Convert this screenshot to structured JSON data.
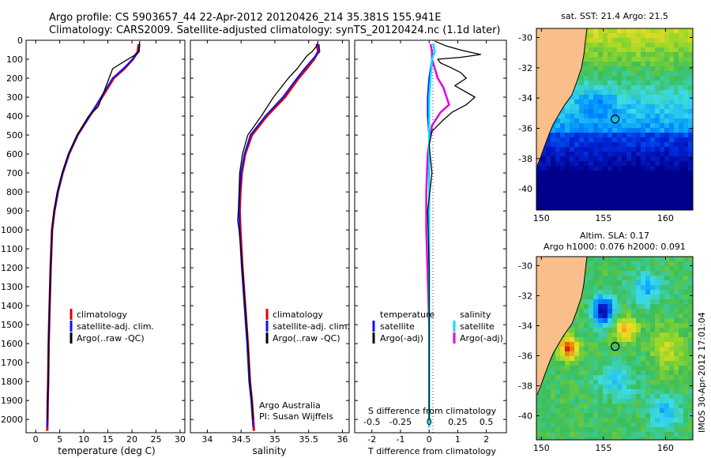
{
  "title_line1": "Argo profile: CS 5903657_44 22-Apr-2012 20120426_214 35.381S 155.941E",
  "title_line2": "Climatology: CARS2009. Satellite-adjusted climatology: synTS_20120424.nc (1.1d later)",
  "colors": {
    "climatology": "#e00000",
    "satellite": "#1010ff",
    "argo": "#000000",
    "sal_sat": "#00e0ff",
    "sal_argo": "#e000e0",
    "land": "#f9be8a"
  },
  "chart_data": [
    {
      "id": "temperature",
      "type": "line",
      "xlabel": "temperature (deg C)",
      "ylabel": "depth",
      "xlim": [
        -2,
        31
      ],
      "ylim": [
        2070,
        0
      ],
      "xticks": [
        "0",
        "5",
        "10",
        "15",
        "20",
        "25",
        "30"
      ],
      "xtick_values": [
        0,
        5,
        10,
        15,
        20,
        25,
        30
      ],
      "yticks": [
        "0",
        "100",
        "200",
        "300",
        "400",
        "500",
        "600",
        "700",
        "800",
        "900",
        "1000",
        "1100",
        "1200",
        "1300",
        "1400",
        "1500",
        "1600",
        "1700",
        "1800",
        "1900",
        "2000"
      ],
      "ytick_values": [
        0,
        100,
        200,
        300,
        400,
        500,
        600,
        700,
        800,
        900,
        1000,
        1100,
        1200,
        1300,
        1400,
        1500,
        1600,
        1700,
        1800,
        1900,
        2000
      ],
      "legend": [
        "climatology",
        "satellite-adj. clim.",
        "Argo(..raw -QC)"
      ],
      "series": [
        {
          "name": "climatology",
          "color": "#e00000",
          "width": 3,
          "x": [
            21.4,
            21.2,
            20.2,
            18.4,
            16.2,
            13.8,
            11.2,
            8.7,
            6.9,
            5.6,
            4.6,
            3.9,
            3.4,
            3.1,
            2.9,
            2.7,
            2.6,
            2.5,
            2.45,
            2.4
          ],
          "depth": [
            20,
            60,
            100,
            150,
            200,
            300,
            400,
            500,
            600,
            700,
            800,
            900,
            1000,
            1200,
            1400,
            1600,
            1800,
            1900,
            2000,
            2060
          ]
        },
        {
          "name": "satellite-adj. clim.",
          "color": "#1010ff",
          "width": 2,
          "x": [
            21.6,
            21.4,
            20.2,
            18.2,
            16.0,
            13.6,
            11.2,
            8.7,
            6.9,
            5.6,
            4.6,
            3.9,
            3.4,
            3.1,
            2.9,
            2.7,
            2.6,
            2.5,
            2.45,
            2.4
          ],
          "depth": [
            20,
            60,
            100,
            150,
            200,
            300,
            400,
            500,
            600,
            700,
            800,
            900,
            1000,
            1200,
            1400,
            1600,
            1800,
            1900,
            2000,
            2040
          ]
        },
        {
          "name": "Argo(..raw -QC)",
          "color": "#000000",
          "width": 1.3,
          "x": [
            21.6,
            21.6,
            21.5,
            20.5,
            18.5,
            16.0,
            14.5,
            13.0,
            11.0,
            8.6,
            6.8,
            5.5,
            4.5,
            3.8,
            3.4,
            3.1,
            2.9,
            2.7,
            2.6,
            2.5,
            2.45
          ],
          "depth": [
            5,
            30,
            60,
            80,
            110,
            150,
            250,
            350,
            400,
            500,
            600,
            700,
            800,
            900,
            1000,
            1200,
            1400,
            1600,
            1800,
            1900,
            2000
          ]
        }
      ]
    },
    {
      "id": "salinity",
      "type": "line",
      "xlabel": "salinity",
      "ylabel": "depth",
      "xlim": [
        33.75,
        36.1
      ],
      "ylim": [
        2070,
        0
      ],
      "xticks": [
        "34",
        "34.5",
        "35",
        "35.5",
        "36"
      ],
      "xtick_values": [
        34,
        34.5,
        35,
        35.5,
        36
      ],
      "legend": [
        "climatology",
        "satellite-adj. clim.",
        "Argo(..raw -QC)"
      ],
      "annotation": [
        "Argo Australia",
        "PI: Susan Wijffels"
      ],
      "series": [
        {
          "name": "climatology",
          "color": "#e00000",
          "width": 3,
          "x": [
            35.62,
            35.64,
            35.58,
            35.47,
            35.35,
            35.15,
            34.88,
            34.66,
            34.56,
            34.51,
            34.49,
            34.48,
            34.49,
            34.52,
            34.56,
            34.6,
            34.63,
            34.66,
            34.68,
            34.69
          ],
          "depth": [
            20,
            60,
            100,
            150,
            200,
            300,
            400,
            500,
            600,
            700,
            800,
            900,
            1000,
            1200,
            1400,
            1600,
            1800,
            1900,
            2000,
            2060
          ]
        },
        {
          "name": "satellite-adj. clim.",
          "color": "#1010ff",
          "width": 2,
          "x": [
            35.65,
            35.66,
            35.56,
            35.44,
            35.33,
            35.12,
            34.86,
            34.64,
            34.55,
            34.5,
            34.48,
            34.47,
            34.48,
            34.51,
            34.55,
            34.59,
            34.62,
            34.65,
            34.67,
            34.68
          ],
          "depth": [
            20,
            60,
            100,
            150,
            200,
            300,
            400,
            500,
            600,
            700,
            800,
            900,
            1000,
            1200,
            1400,
            1600,
            1800,
            1900,
            2000,
            2040
          ]
        },
        {
          "name": "Argo(..raw -QC)",
          "color": "#000000",
          "width": 1.3,
          "x": [
            35.64,
            35.62,
            35.55,
            35.48,
            35.33,
            35.2,
            34.98,
            34.8,
            34.6,
            34.52,
            34.48,
            34.47,
            34.46,
            34.45,
            34.47,
            34.52,
            34.56,
            34.6,
            34.63,
            34.66,
            34.68
          ],
          "depth": [
            5,
            30,
            60,
            80,
            150,
            200,
            300,
            400,
            500,
            600,
            700,
            800,
            900,
            950,
            1000,
            1200,
            1400,
            1600,
            1800,
            1900,
            2000
          ]
        }
      ]
    },
    {
      "id": "difference",
      "type": "line",
      "xlabel": "T difference from climatology",
      "xlabel_top": "S difference from climatology",
      "xlim": [
        -2.6,
        2.7
      ],
      "ylim": [
        2070,
        0
      ],
      "xticks": [
        "-2",
        "-1",
        "0",
        "1",
        "2"
      ],
      "xtick_values": [
        -2,
        -1,
        0,
        1,
        2
      ],
      "sticks": [
        "-0.5",
        "-0.25",
        "0",
        "0.25",
        "0.5"
      ],
      "stick_values": [
        -2,
        -1,
        0,
        1,
        2
      ],
      "legend_left": [
        "temperature",
        "satellite",
        "Argo(-adj)"
      ],
      "legend_right": [
        "salinity",
        "satellite",
        "Argo(-adj)"
      ],
      "series": [
        {
          "name": "T satellite",
          "color": "#1010ff",
          "width": 2,
          "x": [
            0.15,
            0.2,
            0.1,
            0,
            -0.05,
            -0.05,
            0,
            0,
            0,
            0,
            0,
            0,
            0
          ],
          "depth": [
            20,
            60,
            100,
            200,
            300,
            400,
            500,
            700,
            1000,
            1400,
            1700,
            1900,
            2040
          ]
        },
        {
          "name": "S Argo(-adj)",
          "color": "#e000e0",
          "width": 2.5,
          "x": [
            0.05,
            0.1,
            0.1,
            0.3,
            0.5,
            0.7,
            0.4,
            0.1,
            -0.05,
            -0.1,
            -0.1,
            0,
            0
          ],
          "depth": [
            20,
            60,
            100,
            200,
            250,
            340,
            380,
            450,
            600,
            800,
            1000,
            1500,
            2000
          ]
        },
        {
          "name": "S satellite",
          "color": "#00e0ff",
          "width": 2.5,
          "x": [
            0.15,
            0.2,
            0.1,
            0.05,
            0,
            0,
            0,
            0,
            0,
            0,
            0,
            0,
            0
          ],
          "depth": [
            20,
            60,
            100,
            200,
            300,
            400,
            500,
            700,
            1000,
            1400,
            1700,
            1900,
            2040
          ]
        },
        {
          "name": "T Argo(-adj)",
          "color": "#000000",
          "width": 1.3,
          "x": [
            0.2,
            0.6,
            1.2,
            1.8,
            1.1,
            0.3,
            0.4,
            0.7,
            1.1,
            1.3,
            0.9,
            1.6,
            1.3,
            0.8,
            0.5,
            0.1,
            0,
            0.1,
            -0.05,
            0,
            0,
            0,
            0
          ],
          "depth": [
            5,
            30,
            55,
            75,
            90,
            100,
            120,
            140,
            170,
            200,
            240,
            300,
            340,
            380,
            420,
            480,
            550,
            700,
            900,
            1200,
            1500,
            1800,
            2000
          ]
        }
      ]
    }
  ],
  "maps": [
    {
      "id": "sst-map",
      "title": "sat. SST: 21.4 Argo: 21.5",
      "field": "sst",
      "lon_ticks": [
        "150",
        "155",
        "160"
      ],
      "lon_values": [
        150,
        155,
        160
      ],
      "lat_ticks": [
        "-30",
        "-32",
        "-34",
        "-36",
        "-38",
        "-40"
      ],
      "lat_values": [
        -30,
        -32,
        -34,
        -36,
        -38,
        -40
      ],
      "argo_lon": 155.941,
      "argo_lat": -35.381
    },
    {
      "id": "sla-map",
      "title_line1": "Altim. SLA: 0.17",
      "title_line2": "Argo h1000: 0.076 h2000: 0.091",
      "field": "sla",
      "lon_ticks": [
        "150",
        "155",
        "160"
      ],
      "lon_values": [
        150,
        155,
        160
      ],
      "lat_ticks": [
        "-30",
        "-32",
        "-34",
        "-36",
        "-38",
        "-40"
      ],
      "lat_values": [
        -30,
        -32,
        -34,
        -36,
        -38,
        -40
      ],
      "argo_lon": 155.941,
      "argo_lat": -35.381
    }
  ],
  "credit": "IMOS 30-Apr-2012 17:01:04"
}
